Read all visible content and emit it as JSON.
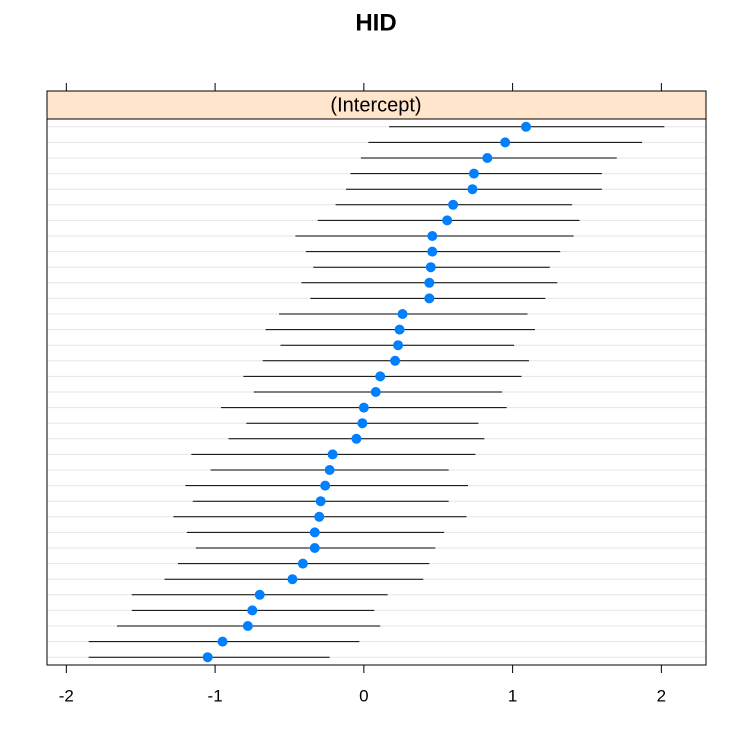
{
  "chart_data": {
    "type": "dotplot",
    "title": "HID",
    "strip": "(Intercept)",
    "values": [
      1.09,
      0.95,
      0.83,
      0.74,
      0.73,
      0.6,
      0.56,
      0.46,
      0.46,
      0.45,
      0.44,
      0.44,
      0.26,
      0.24,
      0.23,
      0.21,
      0.11,
      0.08,
      0.0,
      -0.01,
      -0.05,
      -0.21,
      -0.23,
      -0.26,
      -0.29,
      -0.3,
      -0.33,
      -0.33,
      -0.41,
      -0.48,
      -0.7,
      -0.75,
      -0.78,
      -0.95,
      -1.05
    ],
    "lower": [
      0.17,
      0.03,
      -0.02,
      -0.09,
      -0.12,
      -0.19,
      -0.31,
      -0.46,
      -0.39,
      -0.34,
      -0.42,
      -0.36,
      -0.57,
      -0.66,
      -0.56,
      -0.68,
      -0.81,
      -0.74,
      -0.96,
      -0.79,
      -0.91,
      -1.16,
      -1.03,
      -1.2,
      -1.15,
      -1.28,
      -1.19,
      -1.13,
      -1.25,
      -1.34,
      -1.56,
      -1.56,
      -1.66,
      -1.85,
      -1.85
    ],
    "upper": [
      2.02,
      1.87,
      1.7,
      1.6,
      1.6,
      1.4,
      1.45,
      1.41,
      1.32,
      1.25,
      1.3,
      1.22,
      1.1,
      1.15,
      1.01,
      1.11,
      1.06,
      0.93,
      0.96,
      0.77,
      0.81,
      0.75,
      0.57,
      0.7,
      0.57,
      0.69,
      0.54,
      0.48,
      0.44,
      0.4,
      0.16,
      0.07,
      0.11,
      -0.03,
      -0.23
    ],
    "color": "#0080ff",
    "strip_color": "#ffe5cc",
    "xlim": [
      -2.13,
      2.3
    ],
    "xticks": [
      -2,
      -1,
      0,
      1,
      2
    ],
    "grid": true
  }
}
